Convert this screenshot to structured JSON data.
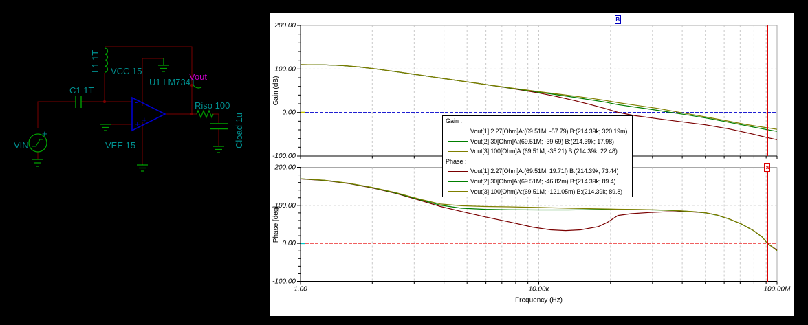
{
  "schematic": {
    "components": {
      "vin": "VIN",
      "c1": "C1 1T",
      "l1": "L1 1T",
      "vcc": "VCC 15",
      "vee": "VEE 15",
      "u1": "U1 LM7341",
      "vout": "Vout",
      "riso": "Riso 100",
      "cload": "Cload 1u",
      "opamp_minus": "-",
      "opamp_plus": "+",
      "vin_plus": "+"
    },
    "colors": {
      "wire": "#7a0000",
      "component": "#00a000",
      "label": "#009090",
      "net_label": "#c800c8",
      "opamp": "#0000cd"
    }
  },
  "chart_data": [
    {
      "type": "line",
      "id": "gain",
      "ylabel": "Gain (dB)",
      "xlabel": "",
      "x_scale": "log",
      "x_range_log10": [
        0,
        8
      ],
      "x_ticks": [
        {
          "label": "1.00",
          "log10": 0
        },
        {
          "label": "10.00k",
          "log10": 4
        },
        {
          "label": "100.00M",
          "log10": 8
        }
      ],
      "show_x_labels": false,
      "y_range": [
        -100,
        200
      ],
      "y_ticks": [
        {
          "label": "200.00",
          "value": 200
        },
        {
          "label": "100.00",
          "value": 100
        },
        {
          "label": "0.00",
          "value": 0
        },
        {
          "label": "-100.00",
          "value": -100
        }
      ],
      "grid_h_values": [
        100
      ],
      "zero_line": {
        "value": 0,
        "color": "#0000cc",
        "edge_mark_color": "#c8c800",
        "over_curves": false
      },
      "series": [
        {
          "name": "Vout[1] 2.27[Ohm]",
          "color": "#7a0000",
          "points": [
            [
              0,
              110
            ],
            [
              0.4,
              109.6
            ],
            [
              0.7,
              108
            ],
            [
              1.0,
              104.5
            ],
            [
              1.3,
              99.5
            ],
            [
              1.6,
              93.8
            ],
            [
              1.9,
              87.9
            ],
            [
              2.2,
              82
            ],
            [
              2.5,
              76.1
            ],
            [
              2.8,
              70.2
            ],
            [
              3.1,
              64.3
            ],
            [
              3.4,
              58.2
            ],
            [
              3.7,
              51.8
            ],
            [
              4.0,
              44.8
            ],
            [
              4.3,
              36.8
            ],
            [
              4.6,
              27.5
            ],
            [
              4.9,
              17
            ],
            [
              5.1,
              9.5
            ],
            [
              5.33,
              0.3
            ],
            [
              5.6,
              -7
            ],
            [
              6.0,
              -14.5
            ],
            [
              6.4,
              -21.5
            ],
            [
              6.8,
              -28.5
            ],
            [
              7.2,
              -38
            ],
            [
              7.6,
              -50
            ],
            [
              7.84,
              -57.8
            ],
            [
              8.0,
              -62.5
            ]
          ]
        },
        {
          "name": "Vout[2] 30[Ohm]",
          "color": "#007f00",
          "points": [
            [
              0,
              110
            ],
            [
              0.4,
              109.6
            ],
            [
              0.7,
              108
            ],
            [
              1.0,
              104.5
            ],
            [
              1.3,
              99.5
            ],
            [
              1.6,
              93.8
            ],
            [
              1.9,
              87.9
            ],
            [
              2.2,
              82
            ],
            [
              2.5,
              76.1
            ],
            [
              2.8,
              70.2
            ],
            [
              3.1,
              64.3
            ],
            [
              3.4,
              58.4
            ],
            [
              3.7,
              52.5
            ],
            [
              4.0,
              46.6
            ],
            [
              4.3,
              40.7
            ],
            [
              4.6,
              34.8
            ],
            [
              4.9,
              28.6
            ],
            [
              5.1,
              24.2
            ],
            [
              5.33,
              18.0
            ],
            [
              5.6,
              12.8
            ],
            [
              6.0,
              4.8
            ],
            [
              6.21,
              0.3
            ],
            [
              6.5,
              -5.8
            ],
            [
              6.9,
              -15
            ],
            [
              7.3,
              -25.5
            ],
            [
              7.6,
              -33.5
            ],
            [
              7.84,
              -39.7
            ],
            [
              8.0,
              -43.5
            ]
          ]
        },
        {
          "name": "Vout[3] 100[Ohm]",
          "color": "#7f7f00",
          "points": [
            [
              0,
              110
            ],
            [
              0.4,
              109.6
            ],
            [
              0.7,
              108.1
            ],
            [
              1.0,
              104.6
            ],
            [
              1.3,
              99.6
            ],
            [
              1.6,
              93.9
            ],
            [
              1.9,
              88
            ],
            [
              2.2,
              82.1
            ],
            [
              2.5,
              76.2
            ],
            [
              2.8,
              70.3
            ],
            [
              3.1,
              64.4
            ],
            [
              3.4,
              58.8
            ],
            [
              3.7,
              53.4
            ],
            [
              4.0,
              48
            ],
            [
              4.3,
              42.7
            ],
            [
              4.6,
              37.6
            ],
            [
              4.9,
              32.2
            ],
            [
              5.1,
              28
            ],
            [
              5.33,
              22.5
            ],
            [
              5.6,
              17.2
            ],
            [
              6.0,
              9.2
            ],
            [
              6.35,
              0.5
            ],
            [
              6.7,
              -7.8
            ],
            [
              7.1,
              -17.8
            ],
            [
              7.5,
              -28.2
            ],
            [
              7.84,
              -35.2
            ],
            [
              8.0,
              -38.8
            ]
          ]
        }
      ]
    },
    {
      "type": "line",
      "id": "phase",
      "ylabel": "Phase [deg]",
      "xlabel": "Frequency (Hz)",
      "x_scale": "log",
      "x_range_log10": [
        0,
        8
      ],
      "x_ticks": [
        {
          "label": "1.00",
          "log10": 0
        },
        {
          "label": "10.00k",
          "log10": 4
        },
        {
          "label": "100.00M",
          "log10": 8
        }
      ],
      "show_x_labels": true,
      "y_range": [
        -100,
        200
      ],
      "y_ticks": [
        {
          "label": "200.00",
          "value": 200
        },
        {
          "label": "100.00",
          "value": 100
        },
        {
          "label": "0.00",
          "value": 0
        },
        {
          "label": "-100.00",
          "value": -100
        }
      ],
      "grid_h_values": [
        100
      ],
      "zero_line": {
        "value": 0,
        "color": "#e80000",
        "edge_mark_color": "#00c8c8",
        "over_curves": true
      },
      "series": [
        {
          "name": "Vout[1] 2.27[Ohm]",
          "color": "#7a0000",
          "points": [
            [
              0,
              169.5
            ],
            [
              0.4,
              165.5
            ],
            [
              0.8,
              157.5
            ],
            [
              1.2,
              146
            ],
            [
              1.6,
              131.5
            ],
            [
              2.0,
              113.5
            ],
            [
              2.35,
              97
            ],
            [
              2.7,
              84
            ],
            [
              3.1,
              69.5
            ],
            [
              3.5,
              56.5
            ],
            [
              3.9,
              42.5
            ],
            [
              4.2,
              35.5
            ],
            [
              4.45,
              33.5
            ],
            [
              4.7,
              35.5
            ],
            [
              5.0,
              44
            ],
            [
              5.15,
              55
            ],
            [
              5.33,
              73.4
            ],
            [
              5.55,
              78
            ],
            [
              5.85,
              81
            ],
            [
              6.15,
              83
            ],
            [
              6.5,
              83.5
            ],
            [
              6.8,
              80.5
            ],
            [
              7.0,
              74
            ],
            [
              7.2,
              64
            ],
            [
              7.4,
              51
            ],
            [
              7.6,
              34
            ],
            [
              7.75,
              17
            ],
            [
              7.84,
              0
            ],
            [
              8.0,
              -17.5
            ]
          ]
        },
        {
          "name": "Vout[2] 30[Ohm]",
          "color": "#007f00",
          "points": [
            [
              0,
              170
            ],
            [
              0.4,
              165.8
            ],
            [
              0.8,
              158
            ],
            [
              1.2,
              146.8
            ],
            [
              1.6,
              132.5
            ],
            [
              2.0,
              115
            ],
            [
              2.35,
              100.5
            ],
            [
              2.7,
              92.5
            ],
            [
              3.1,
              89.5
            ],
            [
              3.5,
              88.5
            ],
            [
              4.0,
              88
            ],
            [
              4.5,
              88
            ],
            [
              5.0,
              88.8
            ],
            [
              5.33,
              89.4
            ],
            [
              5.7,
              88.7
            ],
            [
              6.0,
              87.7
            ],
            [
              6.3,
              86.2
            ],
            [
              6.6,
              83.2
            ],
            [
              6.8,
              80.2
            ],
            [
              7.0,
              73.7
            ],
            [
              7.2,
              63.7
            ],
            [
              7.4,
              50.7
            ],
            [
              7.6,
              33.7
            ],
            [
              7.75,
              16.7
            ],
            [
              7.84,
              -0.05
            ],
            [
              8.0,
              -19.2
            ]
          ]
        },
        {
          "name": "Vout[3] 100[Ohm]",
          "color": "#7f7f00",
          "points": [
            [
              0,
              170
            ],
            [
              0.4,
              166.2
            ],
            [
              0.8,
              158.5
            ],
            [
              1.2,
              147.5
            ],
            [
              1.6,
              133.5
            ],
            [
              2.0,
              116.5
            ],
            [
              2.35,
              103.5
            ],
            [
              2.7,
              99
            ],
            [
              3.1,
              97
            ],
            [
              3.5,
              96
            ],
            [
              4.0,
              94.5
            ],
            [
              4.5,
              92.5
            ],
            [
              5.0,
              91
            ],
            [
              5.33,
              89.8
            ],
            [
              5.7,
              89
            ],
            [
              6.0,
              88
            ],
            [
              6.3,
              86.5
            ],
            [
              6.6,
              83.5
            ],
            [
              6.8,
              80.5
            ],
            [
              7.0,
              74
            ],
            [
              7.2,
              64
            ],
            [
              7.4,
              51
            ],
            [
              7.6,
              34
            ],
            [
              7.75,
              17
            ],
            [
              7.84,
              -0.1
            ],
            [
              8.0,
              -19
            ]
          ]
        }
      ]
    }
  ],
  "legend": {
    "sections": [
      {
        "heading": "Gain :",
        "rows": [
          {
            "color": "#7a0000",
            "text": "Vout[1] 2.27[Ohm]A:(69.51M; -57.79) B:(214.39k; 320.19m)"
          },
          {
            "color": "#007f00",
            "text": "Vout[2] 30[Ohm]A:(69.51M; -39.69) B:(214.39k; 17.98)"
          },
          {
            "color": "#7f7f00",
            "text": "Vout[3] 100[Ohm]A:(69.51M; -35.21) B:(214.39k; 22.48)"
          }
        ]
      },
      {
        "heading": "Phase :",
        "rows": [
          {
            "color": "#7a0000",
            "text": "Vout[1] 2.27[Ohm]A:(69.51M; 19.71f) B:(214.39k; 73.44)"
          },
          {
            "color": "#007f00",
            "text": "Vout[2] 30[Ohm]A:(69.51M; -46.82m) B:(214.39k; 89.4)"
          },
          {
            "color": "#7f7f00",
            "text": "Vout[3] 100[Ohm]A:(69.51M; -121.05m) B:(214.39k; 89.8)"
          }
        ]
      }
    ]
  },
  "cursors": [
    {
      "label": "B",
      "color": "#0000bf",
      "x_log10": 5.331,
      "flag_chart": 0
    },
    {
      "label": "a",
      "color": "#dc0000",
      "x_log10": 7.842,
      "flag_chart": 1
    }
  ]
}
